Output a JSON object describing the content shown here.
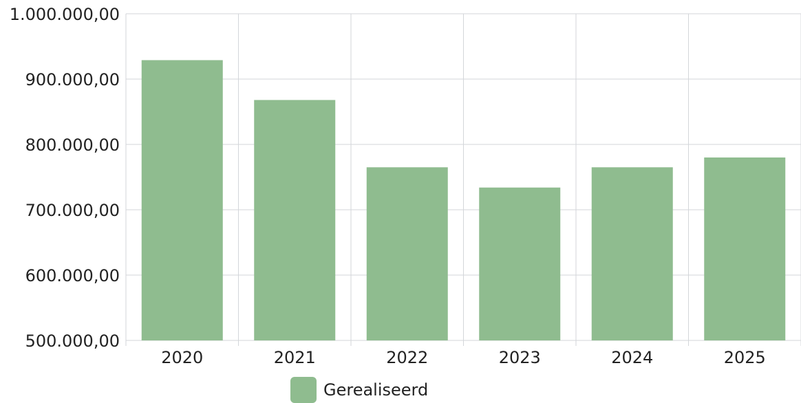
{
  "chart_data": {
    "type": "bar",
    "categories": [
      "2020",
      "2021",
      "2022",
      "2023",
      "2024",
      "2025"
    ],
    "series": [
      {
        "name": "Gerealiseerd",
        "values": [
          929000,
          868000,
          765000,
          734000,
          765000,
          780000
        ],
        "color": "#8fbc8f"
      }
    ],
    "ylim": [
      500000,
      1000000
    ],
    "yticks": [
      500000,
      600000,
      700000,
      800000,
      900000,
      1000000
    ],
    "ytick_labels": [
      "500.000,00",
      "600.000,00",
      "700.000,00",
      "800.000,00",
      "900.000,00",
      "1.000.000,00"
    ],
    "grid": true,
    "legend_position": "bottom-center"
  }
}
